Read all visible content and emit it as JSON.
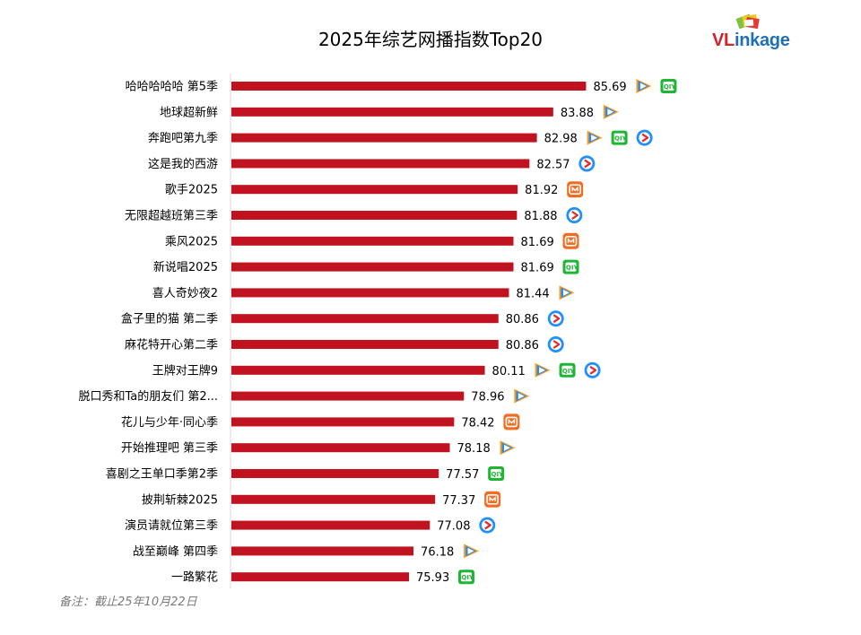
{
  "logo": {
    "text_a": "VL",
    "text_b": "inkage"
  },
  "note": "备注：截止25年10月22日",
  "colors": {
    "bar": "#c1121f",
    "tencent": "#2f88e8",
    "iqiyi": "#1fb535",
    "mango": "#f26d21",
    "youku": "#1e90ff"
  },
  "chart_data": {
    "type": "bar",
    "orientation": "horizontal",
    "title": "2025年综艺网播指数Top20",
    "xlim": [
      0,
      100
    ],
    "grid": false,
    "categories": [
      "哈哈哈哈哈 第5季",
      "地球超新鲜",
      "奔跑吧第九季",
      "这是我的西游",
      "歌手2025",
      "无限超越班第三季",
      "乘风2025",
      "新说唱2025",
      "喜人奇妙夜2",
      "盒子里的猫 第二季",
      "麻花特开心第二季",
      "王牌对王牌9",
      "脱口秀和Ta的朋友们 第2...",
      "花儿与少年·同心季",
      "开始推理吧 第三季",
      "喜剧之王单口季第2季",
      "披荆斩棘2025",
      "演员请就位第三季",
      "战至巅峰 第四季",
      "一路繁花"
    ],
    "values": [
      85.69,
      83.88,
      82.98,
      82.57,
      81.92,
      81.88,
      81.69,
      81.69,
      81.44,
      80.86,
      80.86,
      80.11,
      78.96,
      78.42,
      78.18,
      77.57,
      77.37,
      77.08,
      76.18,
      75.93
    ],
    "platforms": [
      [
        "tencent-video",
        "iqiyi"
      ],
      [
        "tencent-video"
      ],
      [
        "tencent-video",
        "iqiyi",
        "youku"
      ],
      [
        "youku"
      ],
      [
        "mango-tv"
      ],
      [
        "youku"
      ],
      [
        "mango-tv"
      ],
      [
        "iqiyi"
      ],
      [
        "tencent-video"
      ],
      [
        "youku"
      ],
      [
        "youku"
      ],
      [
        "tencent-video",
        "iqiyi",
        "youku"
      ],
      [
        "tencent-video"
      ],
      [
        "mango-tv"
      ],
      [
        "tencent-video"
      ],
      [
        "iqiyi"
      ],
      [
        "mango-tv"
      ],
      [
        "youku"
      ],
      [
        "tencent-video"
      ],
      [
        "iqiyi"
      ]
    ]
  }
}
